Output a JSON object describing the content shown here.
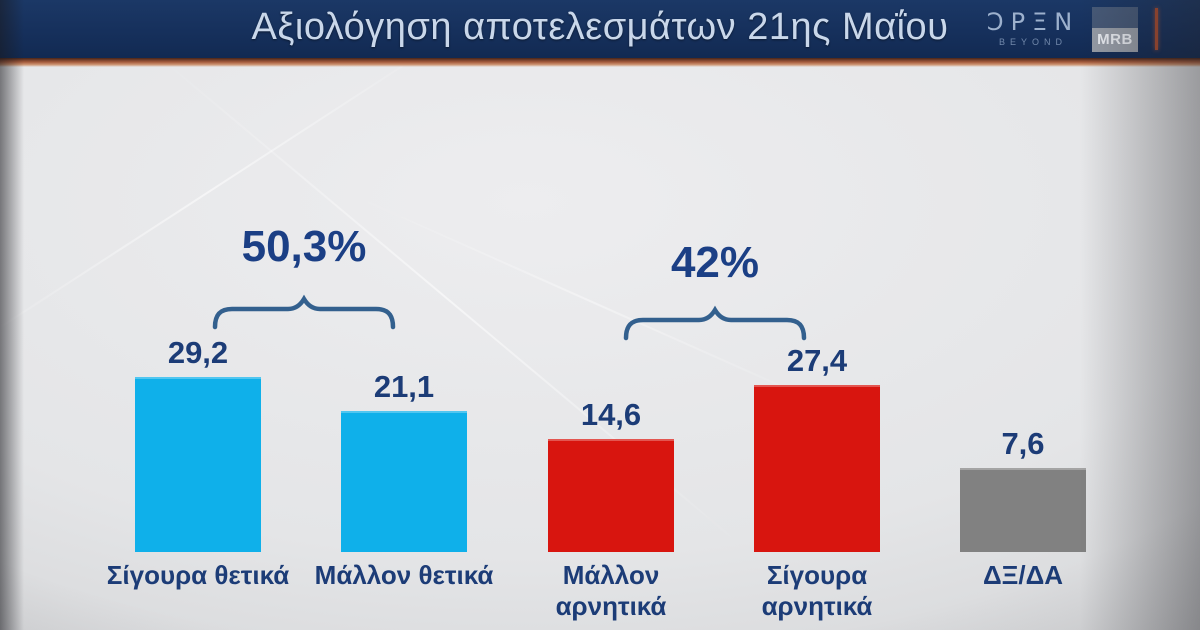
{
  "header": {
    "title": "Αξιολόγηση αποτελεσμάτων 21ης Μαΐου",
    "open_logo": {
      "display": "ƆPΞN",
      "tagline": "BEYOND"
    },
    "agency_logo": "MRB"
  },
  "chart_data": {
    "type": "bar",
    "title": "Αξιολόγηση αποτελεσμάτων 21ης Μαΐου",
    "categories": [
      "Σίγουρα θετικά",
      "Μάλλον θετικά",
      "Μάλλον αρνητικά",
      "Σίγουρα αρνητικά",
      "ΔΞ/ΔΑ"
    ],
    "values": [
      29.2,
      21.1,
      14.6,
      27.4,
      7.6
    ],
    "value_labels": [
      "29,2",
      "21,1",
      "14,6",
      "27,4",
      "7,6"
    ],
    "bar_colors": [
      "#0fb0ea",
      "#0fb0ea",
      "#d8150f",
      "#d8150f",
      "#818181"
    ],
    "groups": [
      {
        "label": "50,3%",
        "from_category": "Σίγουρα θετικά",
        "to_category": "Μάλλον θετικά"
      },
      {
        "label": "42%",
        "from_category": "Μάλλον αρνητικά",
        "to_category": "Σίγουρα αρνητικά"
      }
    ],
    "ylim": [
      0,
      30
    ],
    "grid": false,
    "legend": false,
    "value_axis_visible": false
  },
  "colors": {
    "header_background": "#16305c",
    "header_title_text": "#c9d7ea",
    "accent_copper_line": "#a65c3d",
    "positive_bar": "#0fb0ea",
    "negative_bar": "#d8150f",
    "neutral_bar": "#818181",
    "label_text": "#1c3c77",
    "brace": "#33608e",
    "background": "#e4e5e7"
  }
}
